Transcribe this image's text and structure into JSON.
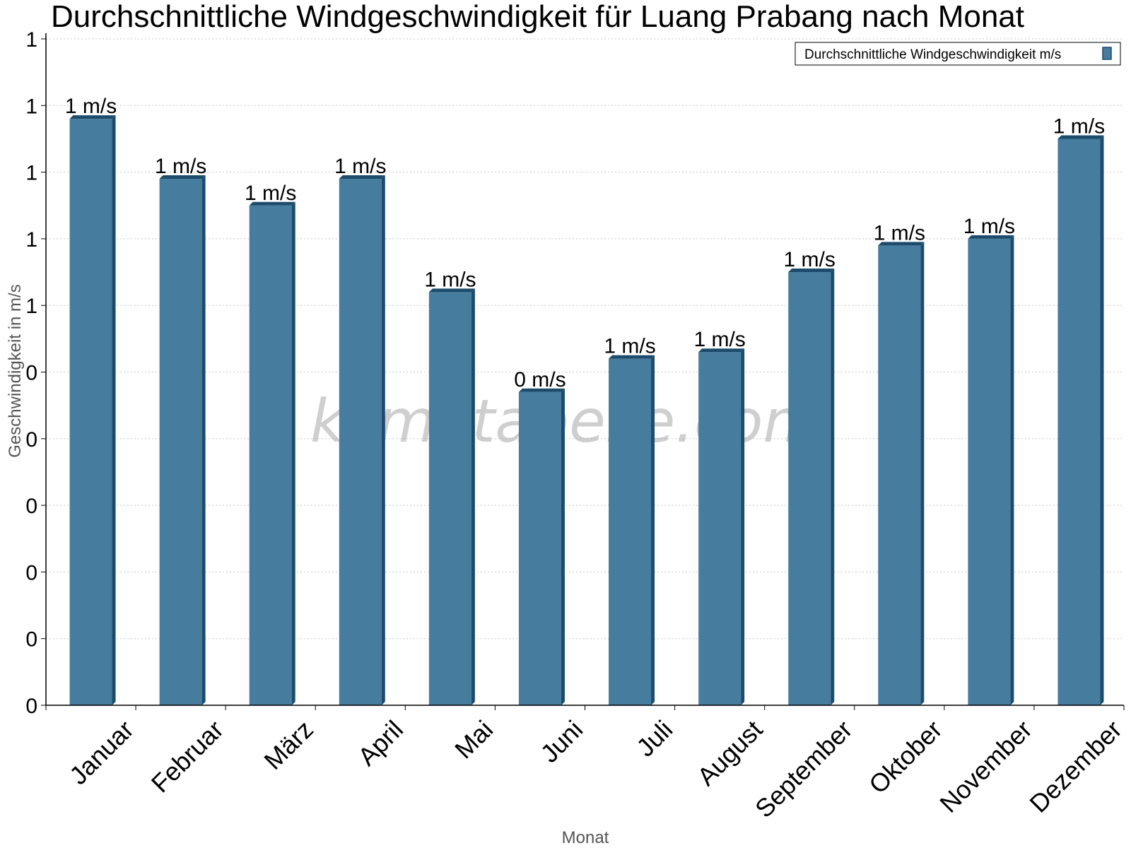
{
  "chart_data": {
    "type": "bar",
    "title": "Durchschnittliche Windgeschwindigkeit für Luang Prabang nach Monat",
    "xlabel": "Monat",
    "ylabel": "Geschwindigkeit in m/s",
    "categories": [
      "Januar",
      "Februar",
      "März",
      "April",
      "Mai",
      "Juni",
      "Juli",
      "August",
      "September",
      "Oktober",
      "November",
      "Dezember"
    ],
    "series": [
      {
        "name": "Durchschnittliche Windgeschwindigkeit m/s",
        "values": [
          0.88,
          0.79,
          0.75,
          0.79,
          0.62,
          0.47,
          0.52,
          0.53,
          0.65,
          0.69,
          0.7,
          0.85
        ],
        "labels": [
          "1 m/s",
          "1 m/s",
          "1 m/s",
          "1 m/s",
          "1 m/s",
          "0 m/s",
          "1 m/s",
          "1 m/s",
          "1 m/s",
          "1 m/s",
          "1 m/s",
          "1 m/s"
        ]
      }
    ],
    "ylim": [
      0,
      1.0
    ],
    "yticks": [
      0,
      0.1,
      0.2,
      0.3,
      0.4,
      0.5,
      0.6,
      0.7,
      0.8,
      0.9,
      1.0
    ],
    "ytick_labels": [
      "0",
      "0",
      "0",
      "0",
      "0",
      "0",
      "1",
      "1",
      "1",
      "1",
      "1"
    ],
    "grid": true,
    "legend_position": "top-right",
    "bar_color": "#467c9e",
    "bar_side_color": "#1d4b6b",
    "watermark": "klimatabelle.com"
  }
}
